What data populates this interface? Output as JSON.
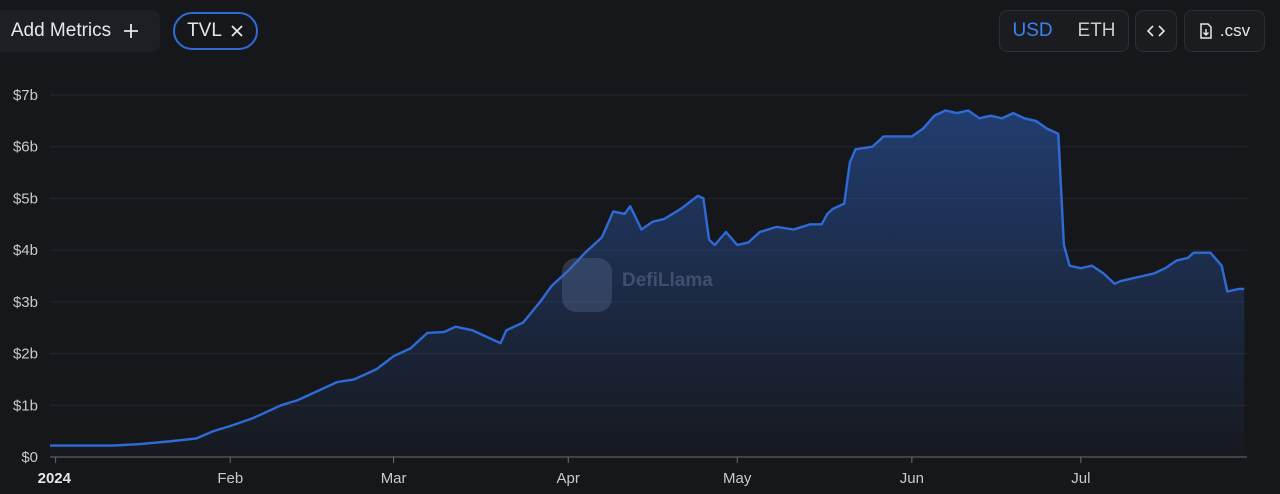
{
  "toolbar": {
    "add_metrics": "Add Metrics",
    "metric_chip": "TVL",
    "currencies": [
      "USD",
      "ETH"
    ],
    "active_currency": "USD",
    "csv": ".csv"
  },
  "watermark": "DefiLlama",
  "chart_data": {
    "type": "area",
    "color": "#2f6bd6",
    "x": [
      -1,
      10,
      15,
      20,
      25,
      28,
      31,
      35,
      40,
      43,
      46,
      50,
      53,
      57,
      60,
      63,
      66,
      69,
      71,
      74,
      77,
      79,
      80,
      83,
      86,
      88,
      91,
      94,
      97,
      99,
      101,
      102,
      104,
      106,
      108,
      111,
      114,
      115,
      116,
      117,
      119,
      121,
      123,
      125,
      128,
      131,
      134,
      136,
      137,
      138,
      140,
      141,
      142,
      145,
      147,
      150,
      152,
      154,
      156,
      158,
      160,
      162,
      164,
      166,
      168,
      170,
      172,
      174,
      176,
      178,
      179,
      180,
      182,
      184,
      186,
      188,
      189,
      191,
      193,
      195,
      197,
      199,
      201,
      202,
      205,
      207,
      208,
      210,
      211
    ],
    "series": [
      {
        "name": "TVL",
        "color": "#2f6bd6",
        "values": [
          0.22,
          0.22,
          0.25,
          0.3,
          0.36,
          0.5,
          0.6,
          0.75,
          1.0,
          1.1,
          1.25,
          1.45,
          1.5,
          1.7,
          1.95,
          2.1,
          2.4,
          2.42,
          2.52,
          2.45,
          2.3,
          2.2,
          2.45,
          2.6,
          3.0,
          3.3,
          3.6,
          3.95,
          4.25,
          4.75,
          4.7,
          4.85,
          4.4,
          4.55,
          4.6,
          4.8,
          5.05,
          5.0,
          4.2,
          4.1,
          4.35,
          4.1,
          4.15,
          4.35,
          4.45,
          4.4,
          4.5,
          4.5,
          4.7,
          4.8,
          4.9,
          5.7,
          5.95,
          6.0,
          6.2,
          6.2,
          6.2,
          6.35,
          6.6,
          6.7,
          6.65,
          6.7,
          6.55,
          6.6,
          6.55,
          6.65,
          6.55,
          6.5,
          6.35,
          6.25,
          4.1,
          3.7,
          3.65,
          3.7,
          3.55,
          3.35,
          3.4,
          3.45,
          3.5,
          3.55,
          3.65,
          3.8,
          3.85,
          3.95,
          3.95,
          3.7,
          3.2,
          3.25,
          3.25
        ]
      }
    ],
    "xlim": [
      -1,
      211.5
    ],
    "xticks": [
      {
        "value": 0,
        "label": "2024"
      },
      {
        "value": 31,
        "label": "Feb"
      },
      {
        "value": 60,
        "label": "Mar"
      },
      {
        "value": 91,
        "label": "Apr"
      },
      {
        "value": 121,
        "label": "May"
      },
      {
        "value": 152,
        "label": "Jun"
      },
      {
        "value": 182,
        "label": "Jul"
      }
    ],
    "ylim": [
      0,
      7
    ],
    "yticks": [
      {
        "value": 0,
        "label": "$0"
      },
      {
        "value": 1,
        "label": "$1b"
      },
      {
        "value": 2,
        "label": "$2b"
      },
      {
        "value": 3,
        "label": "$3b"
      },
      {
        "value": 4,
        "label": "$4b"
      },
      {
        "value": 5,
        "label": "$5b"
      },
      {
        "value": 6,
        "label": "$6b"
      },
      {
        "value": 7,
        "label": "$7b"
      }
    ],
    "grid": true
  }
}
